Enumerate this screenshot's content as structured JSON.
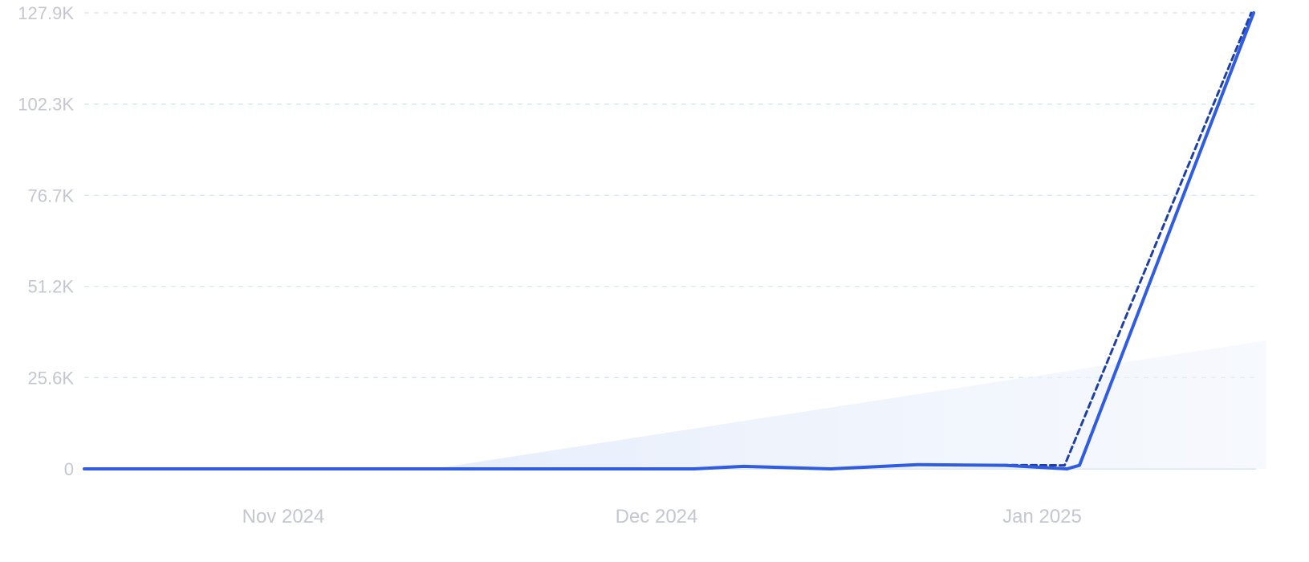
{
  "chart_data": {
    "type": "line",
    "x_start": "2024-10-16",
    "x_end": "2025-01-18",
    "x_ticks": [
      {
        "date": "2024-11-01",
        "label": "Nov 2024"
      },
      {
        "date": "2024-12-01",
        "label": "Dec 2024"
      },
      {
        "date": "2025-01-01",
        "label": "Jan 2025"
      }
    ],
    "y_ticks": [
      {
        "value": 0,
        "label": "0"
      },
      {
        "value": 25600,
        "label": "25.6K"
      },
      {
        "value": 51200,
        "label": "51.2K"
      },
      {
        "value": 76700,
        "label": "76.7K"
      },
      {
        "value": 102300,
        "label": "102.3K"
      },
      {
        "value": 127900,
        "label": "127.9K"
      }
    ],
    "ylim": [
      0,
      127900
    ],
    "grid": true,
    "series": [
      {
        "style": "solid",
        "color": "#2f5ce0",
        "points": [
          [
            "2024-10-16",
            0
          ],
          [
            "2024-11-01",
            0
          ],
          [
            "2024-11-15",
            0
          ],
          [
            "2024-12-01",
            0
          ],
          [
            "2024-12-04",
            0
          ],
          [
            "2024-12-08",
            700
          ],
          [
            "2024-12-15",
            0
          ],
          [
            "2024-12-22",
            1200
          ],
          [
            "2024-12-29",
            1000
          ],
          [
            "2025-01-03",
            0
          ],
          [
            "2025-01-04",
            1000
          ],
          [
            "2025-01-18",
            127900
          ]
        ]
      },
      {
        "style": "dashed",
        "color": "#1e3fa8",
        "points": [
          [
            "2024-12-22",
            1200
          ],
          [
            "2025-01-03",
            1000
          ],
          [
            "2025-01-18",
            127900
          ]
        ]
      }
    ],
    "trend_area": {
      "color": "#dfe8fb",
      "points": [
        [
          "2024-11-13",
          0
        ],
        [
          "2025-01-19",
          36000
        ]
      ]
    }
  }
}
